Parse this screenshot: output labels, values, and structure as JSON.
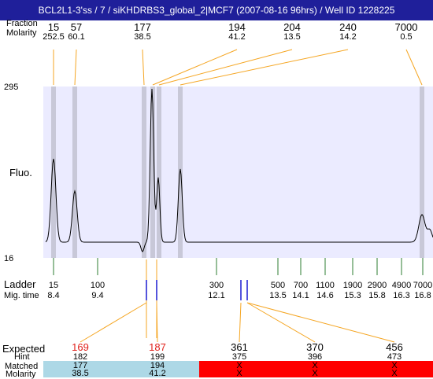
{
  "title": "BCL2L1-3'ss / 7 / siKHDRBS3_global_2|MCF7 (2007-08-16 96hrs) / Well ID 1228225",
  "row_labels": {
    "fraction": "Fraction",
    "molarity": "Molarity",
    "fluo": "Fluo.",
    "ladder": "Ladder",
    "mig_time": "Mig. time",
    "expected": "Expected",
    "hint": "Hint",
    "matched": "Matched",
    "molarity_bottom": "Molarity"
  },
  "y_axis": {
    "max": "295",
    "min": "16"
  },
  "peaks": [
    {
      "size": "15",
      "molarity": "252.5"
    },
    {
      "size": "57",
      "molarity": "60.1"
    },
    {
      "size": "177",
      "molarity": "38.5"
    },
    {
      "size": "194",
      "molarity": "41.2"
    },
    {
      "size": "204",
      "molarity": "13.5"
    },
    {
      "size": "240",
      "molarity": "14.2"
    },
    {
      "size": "7000",
      "molarity": "0.5"
    }
  ],
  "ladder": [
    {
      "size": "15",
      "time": "8.4"
    },
    {
      "size": "100",
      "time": "9.4"
    },
    {
      "size": "300",
      "time": "12.1"
    },
    {
      "size": "500",
      "time": "13.5"
    },
    {
      "size": "700",
      "time": "14.1"
    },
    {
      "size": "1100",
      "time": "14.6"
    },
    {
      "size": "1900",
      "time": "15.3"
    },
    {
      "size": "2900",
      "time": "15.8"
    },
    {
      "size": "4900",
      "time": "16.3"
    },
    {
      "size": "7000",
      "time": "16.8"
    }
  ],
  "expected": [
    {
      "expected": "169",
      "hint": "182",
      "matched": "177",
      "molarity": "38.5",
      "found": true
    },
    {
      "expected": "187",
      "hint": "199",
      "matched": "194",
      "molarity": "41.2",
      "found": true
    },
    {
      "expected": "361",
      "hint": "375",
      "matched": "X",
      "molarity": "X",
      "found": false
    },
    {
      "expected": "370",
      "hint": "396",
      "matched": "X",
      "molarity": "X",
      "found": false
    },
    {
      "expected": "456",
      "hint": "473",
      "matched": "X",
      "molarity": "X",
      "found": false
    }
  ],
  "colors": {
    "title_bg": "#1f1f9a",
    "plot_bg": "#ebebff",
    "peak_band": "#c8c8d8",
    "connector": "#f5a623",
    "ladder_tick": "#2e7d32",
    "hint_line": "#1a1ad0",
    "matched_fill": "#add8e6",
    "unmatched_fill": "#ff0000",
    "expected_highlight": "#e0201a"
  }
}
